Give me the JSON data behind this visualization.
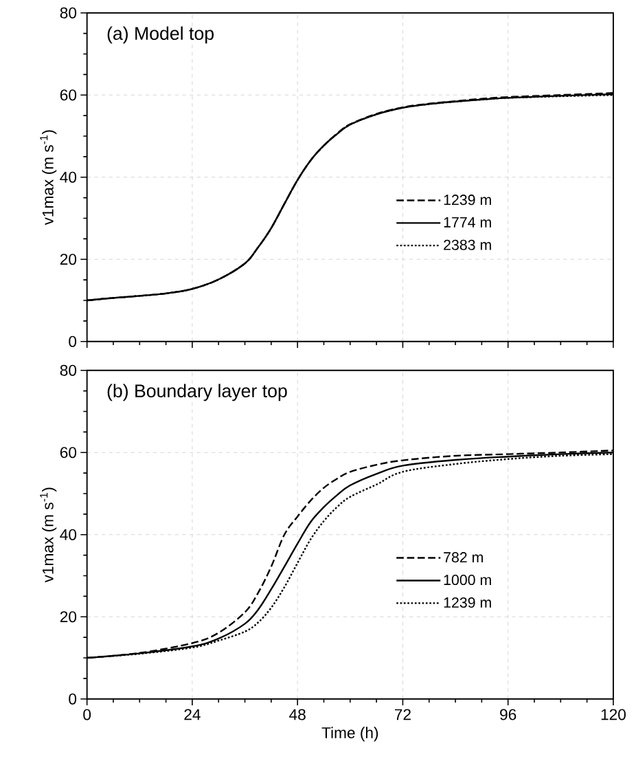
{
  "chart_data": [
    {
      "type": "line",
      "title": "(a) Model top",
      "ylabel": "v1max (m s$^{-1}$)",
      "xlim": [
        0,
        120
      ],
      "ylim": [
        0,
        80
      ],
      "xticks": [
        0,
        24,
        48,
        72,
        96,
        120
      ],
      "yticks": [
        0,
        20,
        40,
        60,
        80
      ],
      "tick_labels": "y",
      "grid": true,
      "legend": "right",
      "x": [
        0,
        6,
        12,
        18,
        24,
        30,
        36,
        39,
        42,
        45,
        48,
        51,
        54,
        57,
        60,
        66,
        72,
        78,
        84,
        90,
        96,
        108,
        120
      ],
      "series": [
        {
          "name": "1239 m",
          "color": "#000000",
          "line_style": "dashed",
          "values": [
            10,
            10.6,
            11.1,
            11.7,
            12.8,
            15.1,
            19.0,
            22.9,
            27.6,
            33.5,
            39.3,
            44.1,
            47.7,
            50.6,
            52.9,
            55.4,
            57.0,
            57.9,
            58.5,
            59.1,
            59.5,
            60.0,
            60.5
          ]
        },
        {
          "name": "1774 m",
          "color": "#000000",
          "line_style": "solid",
          "values": [
            10,
            10.6,
            11.1,
            11.7,
            12.8,
            15.1,
            19.0,
            22.9,
            27.6,
            33.5,
            39.3,
            44.1,
            47.7,
            50.5,
            52.8,
            55.3,
            56.9,
            57.8,
            58.4,
            58.9,
            59.3,
            59.8,
            60.2
          ]
        },
        {
          "name": "2383 m",
          "color": "#000000",
          "line_style": "dotted",
          "values": [
            10,
            10.6,
            11.1,
            11.7,
            12.8,
            15.1,
            19.0,
            22.9,
            27.6,
            33.5,
            39.3,
            44.1,
            47.7,
            50.5,
            52.8,
            55.3,
            56.9,
            57.8,
            58.4,
            58.9,
            59.3,
            59.7,
            60.0
          ]
        }
      ]
    },
    {
      "type": "line",
      "title": "(b) Boundary layer top",
      "xlabel": "Time (h)",
      "ylabel": "v1max (m s$^{-1}$)",
      "xlim": [
        0,
        120
      ],
      "ylim": [
        0,
        80
      ],
      "xticks": [
        0,
        24,
        48,
        72,
        96,
        120
      ],
      "yticks": [
        0,
        20,
        40,
        60,
        80
      ],
      "grid": true,
      "legend": "right",
      "x": [
        0,
        12,
        24,
        30,
        36,
        39,
        42,
        45,
        48,
        51,
        54,
        57,
        60,
        66,
        72,
        84,
        96,
        108,
        120
      ],
      "series": [
        {
          "name": "782 m",
          "color": "#000000",
          "line_style": "dashed",
          "values": [
            10,
            11.2,
            13.6,
            16.1,
            21.1,
            25.8,
            32.2,
            40.0,
            44.4,
            48.3,
            51.4,
            53.6,
            55.3,
            57.0,
            58.1,
            59.2,
            59.6,
            60.0,
            60.5
          ]
        },
        {
          "name": "1000 m",
          "color": "#000000",
          "line_style": "solid",
          "values": [
            10,
            11.1,
            12.8,
            14.7,
            18.3,
            21.7,
            26.7,
            32.2,
            37.8,
            43.1,
            46.7,
            49.6,
            52.0,
            54.8,
            56.8,
            58.2,
            59.0,
            59.6,
            60.0
          ]
        },
        {
          "name": "1239 m",
          "color": "#000000",
          "line_style": "dotted",
          "values": [
            10,
            11.0,
            12.5,
            14.2,
            16.4,
            18.6,
            22.2,
            27.2,
            33.1,
            38.9,
            43.3,
            46.7,
            49.2,
            52.2,
            55.3,
            57.2,
            58.4,
            59.2,
            59.6
          ]
        }
      ]
    }
  ]
}
